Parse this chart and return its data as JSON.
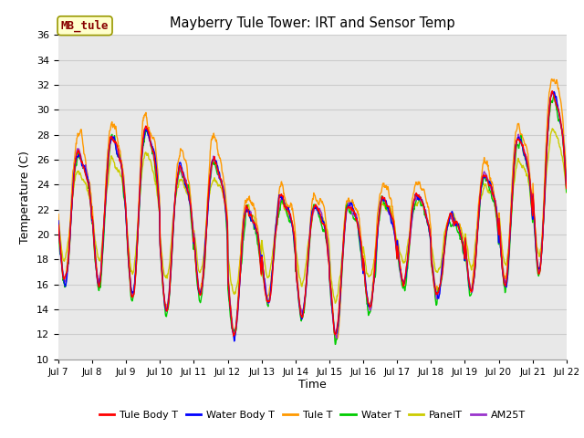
{
  "title": "Mayberry Tule Tower: IRT and Sensor Temp",
  "xlabel": "Time",
  "ylabel": "Temperature (C)",
  "watermark": "MB_tule",
  "ylim": [
    10,
    36
  ],
  "yticks": [
    10,
    12,
    14,
    16,
    18,
    20,
    22,
    24,
    26,
    28,
    30,
    32,
    34,
    36
  ],
  "x_labels": [
    "Jul 7",
    "Jul 8",
    "Jul 9",
    "Jul 10",
    "Jul 11",
    "Jul 12",
    "Jul 13",
    "Jul 14",
    "Jul 15",
    "Jul 16",
    "Jul 17",
    "Jul 18",
    "Jul 19",
    "Jul 20",
    "Jul 21",
    "Jul 22"
  ],
  "colors": {
    "Tule Body T": "#FF0000",
    "Water Body T": "#0000FF",
    "Tule T": "#FF9900",
    "Water T": "#00CC00",
    "PanelT": "#CCCC00",
    "AM25T": "#9933CC"
  },
  "grid_color": "#cccccc",
  "bg_color": "#e8e8e8",
  "fig_bg": "#ffffff",
  "lw": 1.0,
  "n_days": 15,
  "pts_per_day": 96
}
